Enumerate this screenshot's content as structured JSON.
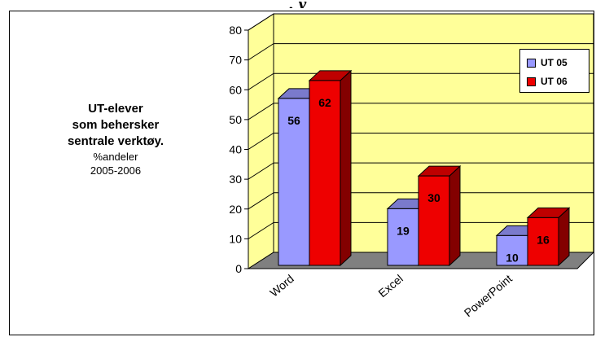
{
  "header_fragment": ", y",
  "title": {
    "line1": "UT-elever",
    "line2": "som behersker",
    "line3": "sentrale verktøy.",
    "line4": "%andeler",
    "line5": "2005-2006"
  },
  "colors": {
    "series1": "#9999ff",
    "series2": "#ee0000",
    "wall": "#ffff99",
    "floor": "#808080"
  },
  "chart_data": {
    "type": "bar",
    "title": "UT-elever som behersker sentrale verktøy. %andeler 2005-2006",
    "categories": [
      "Word",
      "Excel",
      "PowerPoint"
    ],
    "series": [
      {
        "name": "UT 05",
        "values": [
          56,
          19,
          10
        ]
      },
      {
        "name": "UT 06",
        "values": [
          62,
          30,
          16
        ]
      }
    ],
    "ylim": [
      0,
      80
    ],
    "yticks": [
      0,
      10,
      20,
      30,
      40,
      50,
      60,
      70,
      80
    ],
    "grid": true,
    "legend": "top-right",
    "three_d": true
  }
}
